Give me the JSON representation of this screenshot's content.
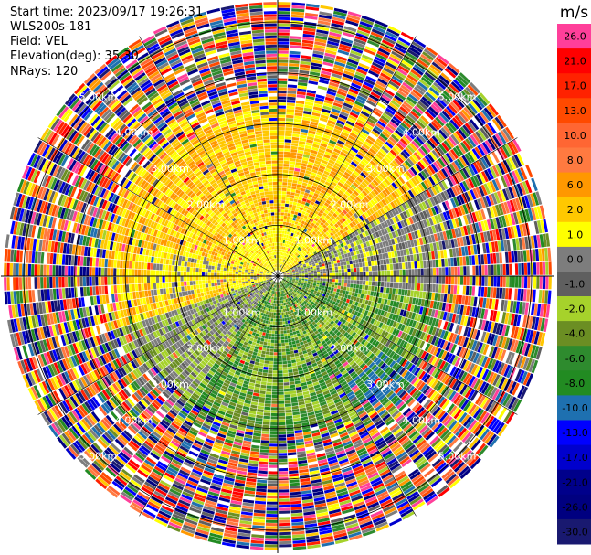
{
  "header": {
    "start_time": "Start time: 2023/09/17 19:26:31",
    "instrument": "WLS200s-181",
    "field": "Field: VEL",
    "elevation": "Elevation(deg): 35.30",
    "nrays": "NRays: 120"
  },
  "chart_data": {
    "type": "heatmap",
    "projection": "polar-ppi",
    "field": "VEL",
    "nrays": 120,
    "range_rings_km": [
      1.0,
      2.0,
      3.0,
      4.0,
      5.0
    ],
    "range_ring_labels": [
      "1.00km",
      "2.00km",
      "3.00km",
      "4.00km",
      "5.00km"
    ],
    "colorbar": {
      "unit": "m/s",
      "ticks": [
        "26.0",
        "21.0",
        "17.0",
        "13.0",
        "10.0",
        "8.0",
        "6.0",
        "2.0",
        "1.0",
        "0.0",
        "-1.0",
        "-2.0",
        "-4.0",
        "-6.0",
        "-8.0",
        "-10.0",
        "-13.0",
        "-17.0",
        "-21.0",
        "-26.0",
        "-30.0"
      ],
      "colors": [
        "#ff3f9a",
        "#ff0000",
        "#ff2200",
        "#ff4a00",
        "#ff6633",
        "#ff7a40",
        "#ff9800",
        "#ffc800",
        "#ffff00",
        "#7d7d7d",
        "#5f5f5f",
        "#a6d22b",
        "#6b8e23",
        "#2e8b2e",
        "#228b22",
        "#1e70b0",
        "#0000ff",
        "#0000cd",
        "#00008b",
        "#000080",
        "#191970"
      ]
    }
  }
}
